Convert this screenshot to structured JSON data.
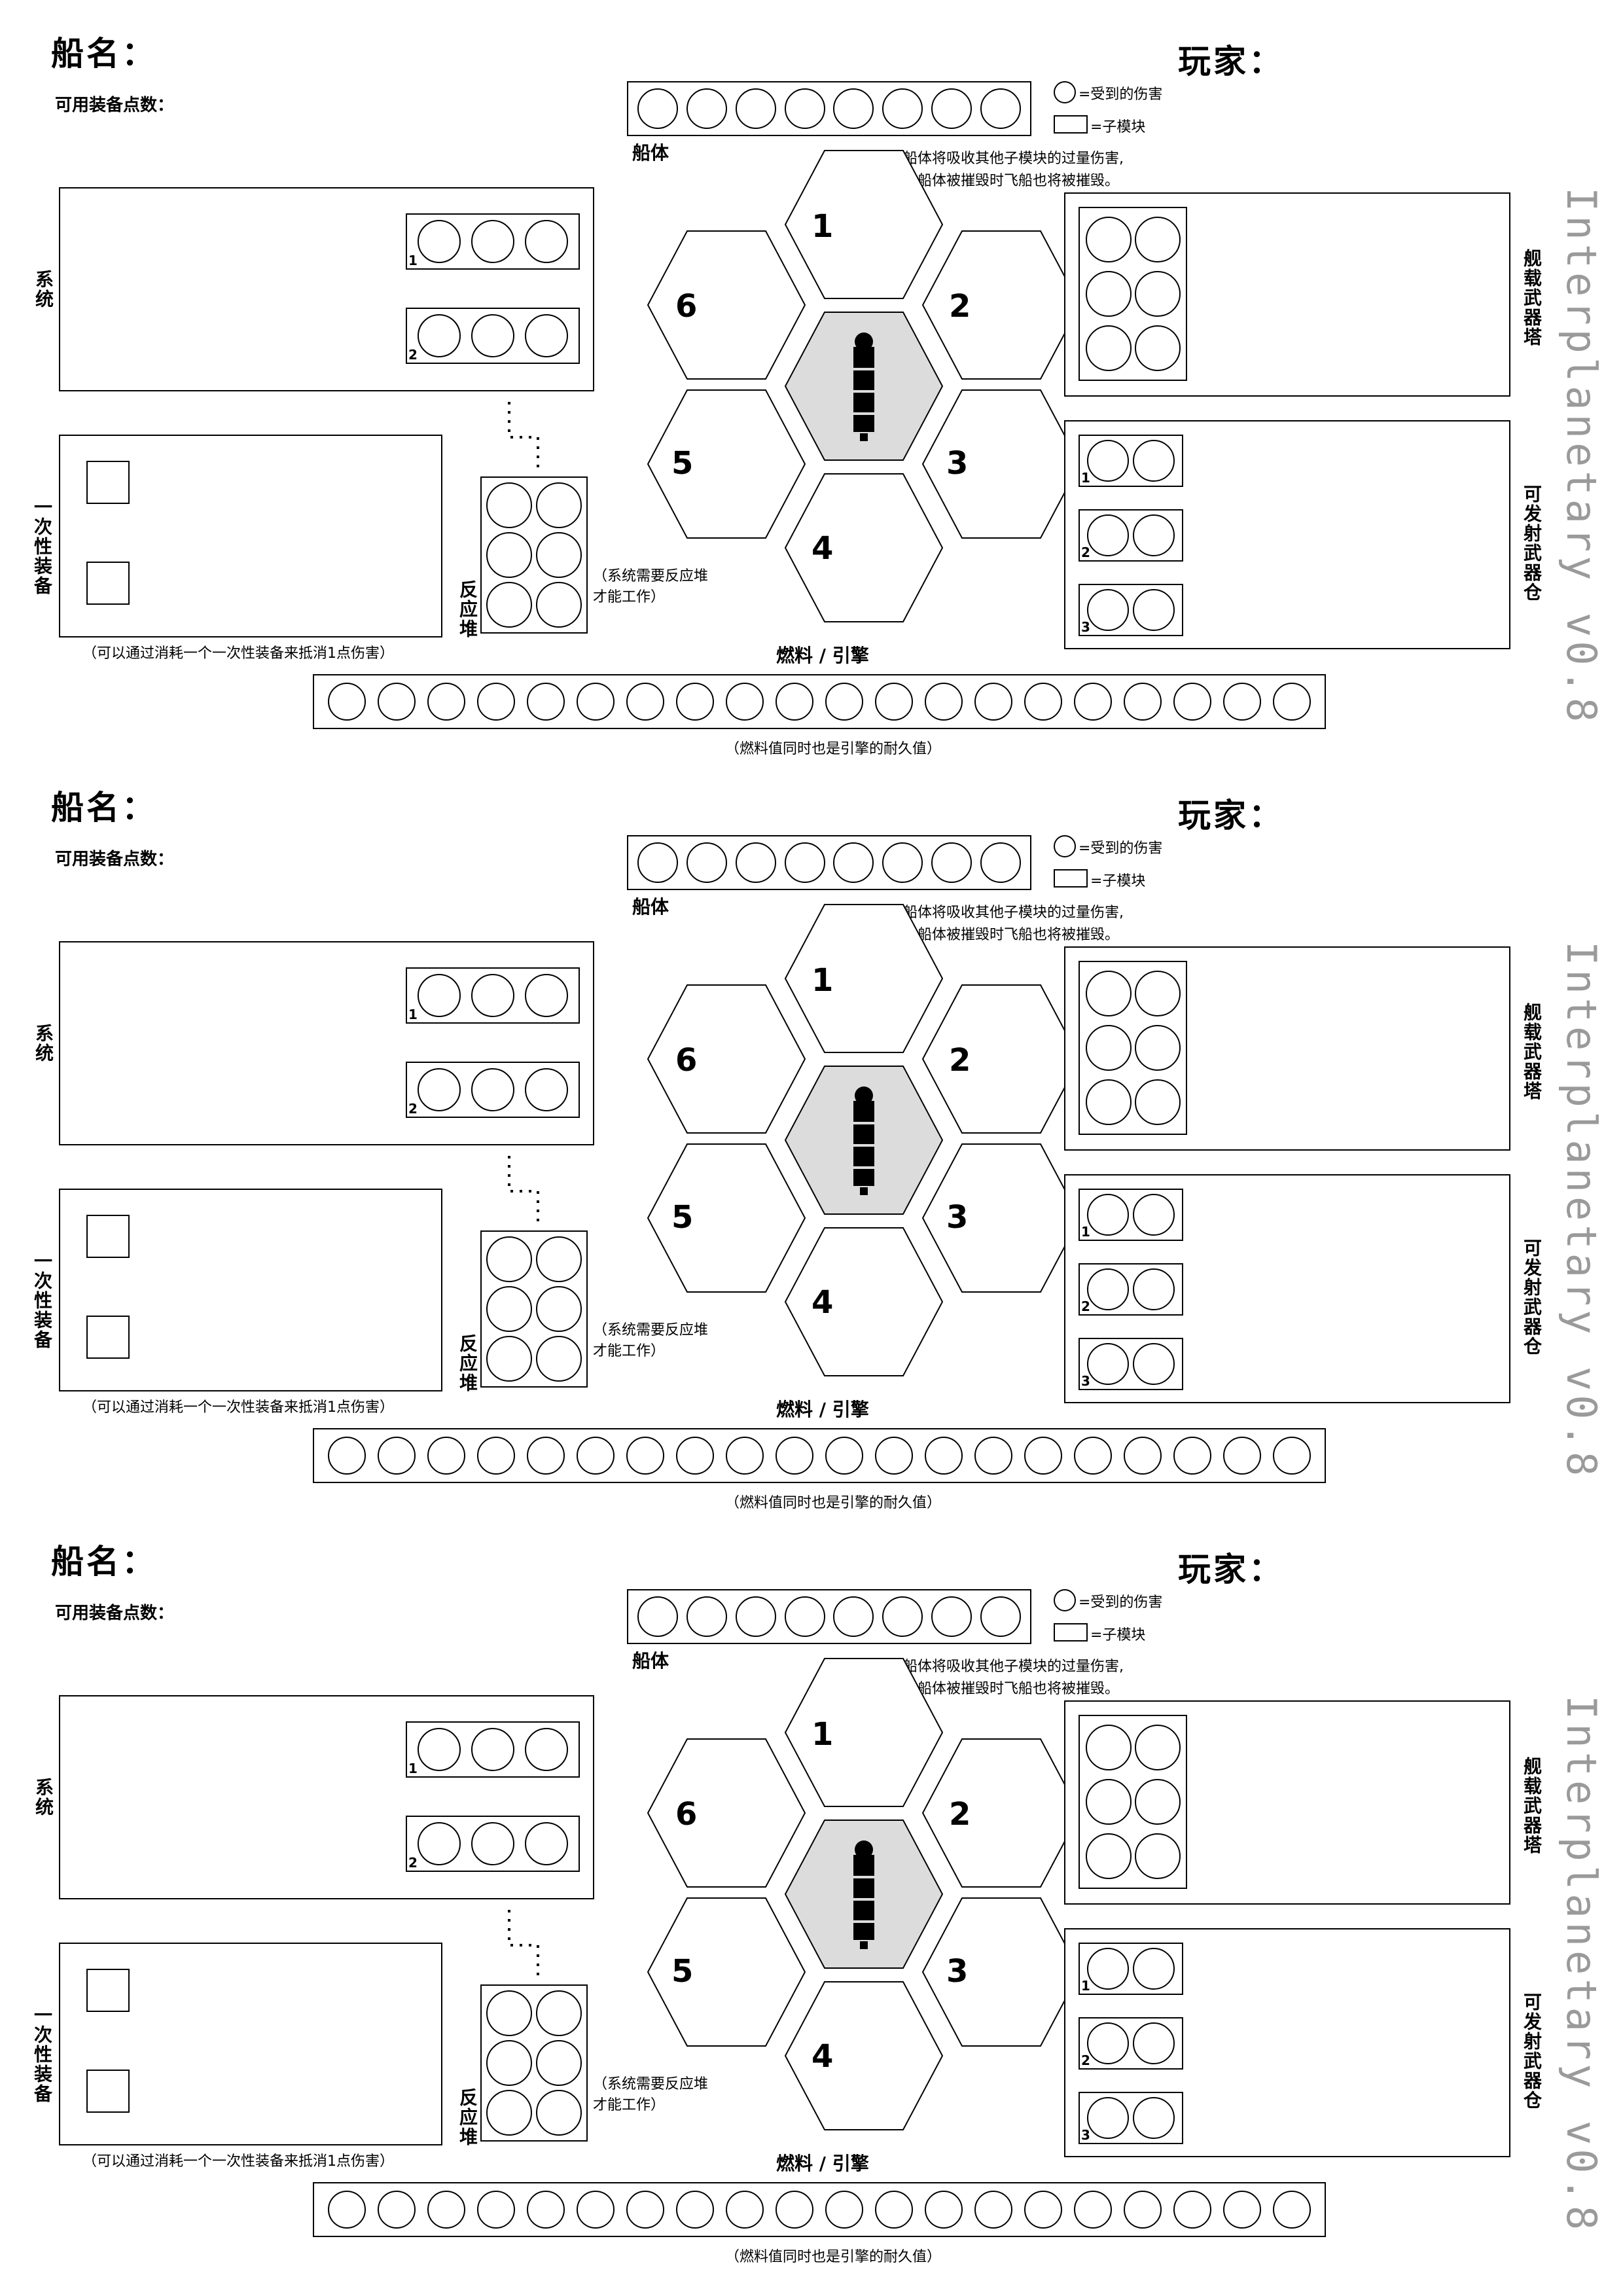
{
  "sheet": {
    "ship_name_label": "船名：",
    "player_label": "玩家：",
    "equipment_points_label": "可用装备点数：",
    "legend_damage": "=受到的伤害",
    "legend_submodule": "=子模块",
    "hull_label": "船体",
    "hull_note_line1": "船体将吸收其他子模块的过量伤害,",
    "hull_note_line2": "当船体被摧毁时飞船也将被摧毁。",
    "systems_label": "系统",
    "disposables_label": "一次性装备",
    "disposables_note": "（可以通过消耗一个一次性装备来抵消1点伤害）",
    "reactor_label": "反应堆",
    "reactor_note_line1": "（系统需要反应堆",
    "reactor_note_line2": "才能工作）",
    "fuel_label": "燃料 / 引擎",
    "fuel_note": "（燃料值同时也是引擎的耐久值）",
    "turret_label": "舰载武器塔",
    "launcher_label": "可发射武器仓",
    "version_text": "Interplanetary v0.8",
    "hex_numbers": [
      "1",
      "2",
      "3",
      "4",
      "5",
      "6"
    ],
    "system_slot_indices": [
      "1",
      "2"
    ],
    "launcher_slot_indices": [
      "1",
      "2",
      "3"
    ],
    "hull_damage_circles": 8,
    "fuel_circles": 20,
    "system_slot_circles": 3,
    "launcher_slot_circles": 2,
    "turret_circles": 6,
    "reactor_circles": 6,
    "disposable_slots": 2
  },
  "sheet_count": 3
}
